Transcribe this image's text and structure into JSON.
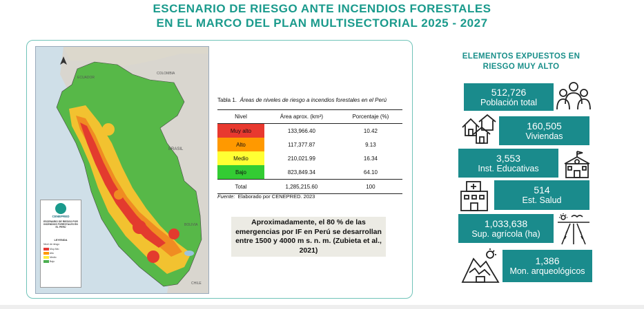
{
  "title": {
    "line1": "ESCENARIO DE RIESGO ANTE INCENDIOS FORESTALES",
    "line2": "EN EL MARCO DEL PLAN MULTISECTORIAL 2025 - 2027"
  },
  "map": {
    "countries": {
      "ecuador": "ECUADOR",
      "colombia": "COLOMBIA",
      "brasil": "BRASIL",
      "bolivia": "BOLIVIA",
      "chile": "CHILE"
    },
    "legend_title": "LEYENDA",
    "legend_subtitle": "Nivel de riesgo",
    "legend_items": [
      "Muy Alto",
      "Alto",
      "Medio",
      "Bajo"
    ],
    "logo_text": "CENEPRED",
    "map_title": "ESCENARIO DE RIESGO POR INCENDIOS FORESTALES EN EL PERÚ",
    "colors": {
      "muy_alto": "#e53935",
      "alto": "#ff9800",
      "medio": "#ffeb3b",
      "bajo": "#4caf50"
    }
  },
  "table": {
    "caption_num": "Tabla 1.",
    "caption_text": "Áreas de niveles de riesgo a incendios forestales en el Perú",
    "headers": [
      "Nivel",
      "Área aprox. (km²)",
      "Porcentaje (%)"
    ],
    "rows": [
      {
        "nivel": "Muy alto",
        "area": "133,966.40",
        "pct": "10.42",
        "color": "#e8392f"
      },
      {
        "nivel": "Alto",
        "area": "117,377.87",
        "pct": "9.13",
        "color": "#ff9900"
      },
      {
        "nivel": "Medio",
        "area": "210,021.99",
        "pct": "16.34",
        "color": "#ffff33"
      },
      {
        "nivel": "Bajo",
        "area": "823,849.34",
        "pct": "64.10",
        "color": "#33cc33"
      }
    ],
    "total": {
      "nivel": "Total",
      "area": "1,285,215.60",
      "pct": "100"
    }
  },
  "source": {
    "label": "Fuente:",
    "text": "Elaborado por CENEPRED. 2023"
  },
  "note": "Aproximadamente, el 80 % de las emergencias por IF en Perú se desarrollan entre 1500 y 4000 m s. n. m. (Zubieta et al., 2021)",
  "exposed": {
    "heading_line1": "ELEMENTOS EXPUESTOS EN",
    "heading_line2": "RIESGO MUY ALTO",
    "items": [
      {
        "value": "512,726",
        "label": "Población total",
        "icon": "people-icon"
      },
      {
        "value": "160,505",
        "label": "Viviendas",
        "icon": "houses-icon"
      },
      {
        "value": "3,553",
        "label": "Inst. Educativas",
        "icon": "school-icon"
      },
      {
        "value": "514",
        "label": "Est. Salud",
        "icon": "hospital-icon"
      },
      {
        "value": "1,033,638",
        "label": "Sup. agrícola (ha)",
        "icon": "farmland-icon"
      },
      {
        "value": "1,386",
        "label": "Mon. arqueológicos",
        "icon": "ruins-icon"
      }
    ]
  }
}
